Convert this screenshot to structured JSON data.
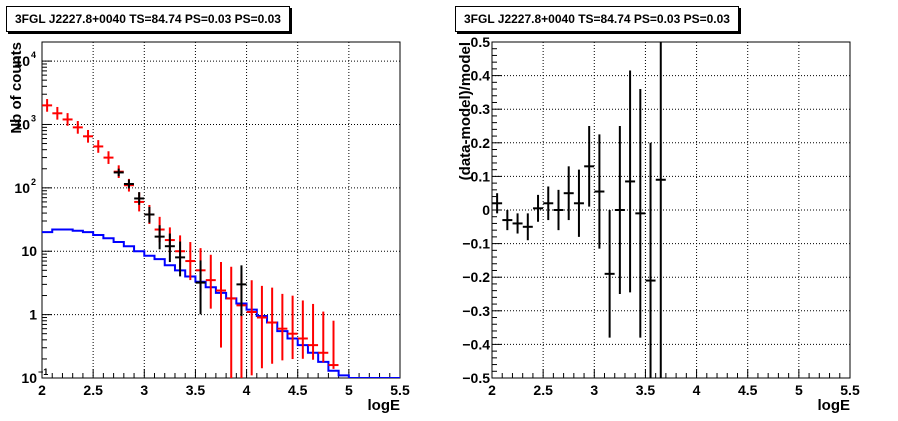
{
  "chart_data": [
    {
      "type": "scatter",
      "title": "3FGL J2227.8+0040 TS=84.74 PS=0.03 PS=0.03",
      "xlabel": "logE",
      "ylabel": "Nb of counts",
      "xlim": [
        2,
        5.5
      ],
      "ylim": [
        0.1,
        20000
      ],
      "log_y": true,
      "grid": true,
      "x_ticks": [
        "2",
        "2.5",
        "3",
        "3.5",
        "4",
        "4.5",
        "5",
        "5.5"
      ],
      "y_ticks": [
        "10^-1",
        "1",
        "10",
        "10^2",
        "10^3",
        "10^4"
      ],
      "series": [
        {
          "color": "#ff0000",
          "style": "error-crosses",
          "points": [
            {
              "x": 2.05,
              "y": 2000
            },
            {
              "x": 2.15,
              "y": 1500
            },
            {
              "x": 2.25,
              "y": 1200
            },
            {
              "x": 2.35,
              "y": 900
            },
            {
              "x": 2.45,
              "y": 650
            },
            {
              "x": 2.55,
              "y": 450
            },
            {
              "x": 2.65,
              "y": 300
            },
            {
              "x": 2.75,
              "y": 180
            },
            {
              "x": 2.85,
              "y": 110
            },
            {
              "x": 2.95,
              "y": 60
            },
            {
              "x": 3.05,
              "y": 38
            },
            {
              "x": 3.15,
              "y": 22
            },
            {
              "x": 3.25,
              "y": 15
            },
            {
              "x": 3.35,
              "y": 10
            },
            {
              "x": 3.45,
              "y": 7
            },
            {
              "x": 3.55,
              "y": 5
            },
            {
              "x": 3.65,
              "y": 3.5
            },
            {
              "x": 3.75,
              "y": 2.4
            },
            {
              "x": 3.85,
              "y": 1.8
            },
            {
              "x": 3.95,
              "y": 1.4
            },
            {
              "x": 4.05,
              "y": 1.1
            },
            {
              "x": 4.15,
              "y": 0.9
            },
            {
              "x": 4.25,
              "y": 0.75
            },
            {
              "x": 4.35,
              "y": 0.6
            },
            {
              "x": 4.45,
              "y": 0.5
            },
            {
              "x": 4.55,
              "y": 0.42
            },
            {
              "x": 4.65,
              "y": 0.33
            },
            {
              "x": 4.75,
              "y": 0.25
            },
            {
              "x": 4.85,
              "y": 0.16
            }
          ],
          "err_lo": [
            0.1,
            0.1,
            0.1,
            0.1,
            0.1,
            0.1,
            0.1,
            0.1,
            0.1,
            0.15,
            0.15,
            0.2,
            0.2,
            0.25,
            0.3,
            0.35,
            0.45,
            0.9,
            1.7,
            1.3,
            1.0,
            0.8,
            0.65,
            0.5,
            0.4,
            0.32,
            0.23,
            0.15,
            0.06
          ],
          "err_hi": [
            0.1,
            0.1,
            0.1,
            0.1,
            0.1,
            0.1,
            0.1,
            0.1,
            0.1,
            0.15,
            0.15,
            0.2,
            0.2,
            0.25,
            0.3,
            0.35,
            0.4,
            0.45,
            0.5,
            0.5,
            0.5,
            0.5,
            0.55,
            0.55,
            0.6,
            0.6,
            0.65,
            0.65,
            0.7
          ]
        },
        {
          "color": "#000000",
          "style": "error-crosses",
          "points": [
            {
              "x": 2.75,
              "y": 175
            },
            {
              "x": 2.85,
              "y": 115
            },
            {
              "x": 2.95,
              "y": 68
            },
            {
              "x": 3.05,
              "y": 38
            },
            {
              "x": 3.15,
              "y": 17
            },
            {
              "x": 3.25,
              "y": 12
            },
            {
              "x": 3.35,
              "y": 8
            },
            {
              "x": 3.55,
              "y": 3.2
            },
            {
              "x": 3.95,
              "y": 3.0
            }
          ],
          "err_lo": [
            0.06,
            0.07,
            0.1,
            0.13,
            0.2,
            0.25,
            0.3,
            0.5,
            0.5
          ],
          "err_hi": [
            0.06,
            0.07,
            0.1,
            0.12,
            0.18,
            0.2,
            0.25,
            0.35,
            0.3
          ]
        },
        {
          "color": "#0000ff",
          "style": "histogram-step",
          "bin_edges": [
            2.0,
            2.1,
            2.2,
            2.3,
            2.4,
            2.5,
            2.6,
            2.7,
            2.8,
            2.9,
            3.0,
            3.1,
            3.2,
            3.3,
            3.4,
            3.5,
            3.6,
            3.7,
            3.8,
            3.9,
            4.0,
            4.1,
            4.2,
            4.3,
            4.4,
            4.5,
            4.6,
            4.7,
            4.8,
            4.9,
            5.0,
            5.5
          ],
          "values": [
            20,
            22,
            22,
            21,
            20,
            18,
            16,
            14,
            12,
            10,
            8.5,
            7.5,
            6,
            5,
            4,
            3.3,
            2.7,
            2.2,
            1.8,
            1.5,
            1.2,
            0.95,
            0.75,
            0.55,
            0.42,
            0.33,
            0.25,
            0.18,
            0.13,
            0.11,
            0.1
          ]
        }
      ]
    },
    {
      "type": "scatter",
      "title": "3FGL J2227.8+0040 TS=84.74 PS=0.03 PS=0.03",
      "xlabel": "logE",
      "ylabel": "(data-model)/model",
      "xlim": [
        2,
        5.5
      ],
      "ylim": [
        -0.5,
        0.5
      ],
      "grid": true,
      "x_ticks": [
        "2",
        "2.5",
        "3",
        "3.5",
        "4",
        "4.5",
        "5",
        "5.5"
      ],
      "y_ticks": [
        "−0.5",
        "−0.4",
        "−0.3",
        "−0.2",
        "−0.1",
        "0",
        "0.1",
        "0.2",
        "0.3",
        "0.4",
        "0.5"
      ],
      "series": [
        {
          "color": "#000000",
          "style": "error-crosses",
          "points": [
            {
              "x": 2.05,
              "y": 0.02,
              "elo": 0.03,
              "ehi": 0.03
            },
            {
              "x": 2.15,
              "y": -0.03,
              "elo": 0.03,
              "ehi": 0.03
            },
            {
              "x": 2.25,
              "y": -0.04,
              "elo": 0.03,
              "ehi": 0.03
            },
            {
              "x": 2.35,
              "y": -0.05,
              "elo": 0.04,
              "ehi": 0.04
            },
            {
              "x": 2.45,
              "y": 0.005,
              "elo": 0.04,
              "ehi": 0.04
            },
            {
              "x": 2.55,
              "y": 0.02,
              "elo": 0.05,
              "ehi": 0.05
            },
            {
              "x": 2.65,
              "y": 0.0,
              "elo": 0.06,
              "ehi": 0.06
            },
            {
              "x": 2.75,
              "y": 0.05,
              "elo": 0.08,
              "ehi": 0.08
            },
            {
              "x": 2.85,
              "y": 0.02,
              "elo": 0.1,
              "ehi": 0.1
            },
            {
              "x": 2.95,
              "y": 0.13,
              "elo": 0.12,
              "ehi": 0.12
            },
            {
              "x": 3.05,
              "y": 0.055,
              "elo": 0.17,
              "ehi": 0.17
            },
            {
              "x": 3.15,
              "y": -0.19,
              "elo": 0.19,
              "ehi": 0.19
            },
            {
              "x": 3.25,
              "y": -0.0,
              "elo": 0.25,
              "ehi": 0.25
            },
            {
              "x": 3.35,
              "y": 0.085,
              "elo": 0.33,
              "ehi": 0.33
            },
            {
              "x": 3.45,
              "y": -0.01,
              "elo": 0.37,
              "ehi": 0.37
            },
            {
              "x": 3.55,
              "y": -0.21,
              "elo": 0.35,
              "ehi": 0.41
            },
            {
              "x": 3.65,
              "y": 0.09,
              "elo": 0.6,
              "ehi": 0.6
            }
          ]
        }
      ]
    }
  ]
}
